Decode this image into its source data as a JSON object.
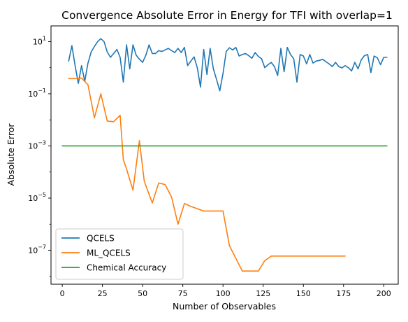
{
  "chart_data": {
    "type": "line",
    "title": "Convergence Absolute Error in Energy for TFI with overlap=1",
    "xlabel": "Number of Observables",
    "ylabel": "Absolute Error",
    "xlim": [
      -7,
      209
    ],
    "ylim": [
      5e-09,
      40
    ],
    "yscale": "log",
    "grid": false,
    "legend_position": "lower-left",
    "x_ticks": [
      0,
      25,
      50,
      75,
      100,
      125,
      150,
      175,
      200
    ],
    "y_ticks": [
      {
        "value": 10,
        "mantissa": "10",
        "exp": "1"
      },
      {
        "value": 0.1,
        "mantissa": "10",
        "exp": "−1"
      },
      {
        "value": 0.001,
        "mantissa": "10",
        "exp": "−3"
      },
      {
        "value": 1e-05,
        "mantissa": "10",
        "exp": "−5"
      },
      {
        "value": 1e-07,
        "mantissa": "10",
        "exp": "−7"
      }
    ],
    "series": [
      {
        "name": "QCELS",
        "color": "#1f77b4",
        "x": [
          4,
          6,
          8,
          10,
          12,
          14,
          16,
          18,
          20,
          22,
          24,
          26,
          28,
          30,
          32,
          34,
          36,
          38,
          40,
          42,
          44,
          46,
          48,
          50,
          52,
          54,
          56,
          58,
          60,
          62,
          64,
          66,
          68,
          70,
          72,
          74,
          76,
          78,
          80,
          82,
          84,
          86,
          88,
          90,
          92,
          94,
          96,
          98,
          100,
          102,
          104,
          106,
          108,
          110,
          112,
          114,
          116,
          118,
          120,
          122,
          124,
          126,
          128,
          130,
          132,
          134,
          136,
          138,
          140,
          142,
          144,
          146,
          148,
          150,
          152,
          154,
          156,
          158,
          160,
          162,
          164,
          166,
          168,
          170,
          172,
          174,
          176,
          178,
          180,
          182,
          184,
          186,
          188,
          190,
          192,
          194,
          196,
          198,
          200,
          202
        ],
        "y": [
          1.8,
          7.0,
          1.2,
          0.25,
          1.2,
          0.3,
          1.5,
          4.0,
          6.5,
          10,
          13,
          10,
          4.0,
          2.5,
          3.5,
          5.0,
          2.5,
          0.28,
          7.5,
          0.9,
          7.5,
          3.0,
          2.1,
          1.6,
          3.0,
          7.5,
          3.5,
          3.5,
          4.5,
          4.2,
          4.8,
          5.5,
          4.5,
          3.8,
          5.5,
          3.8,
          6.0,
          1.2,
          1.8,
          2.6,
          1.0,
          0.18,
          5.0,
          0.55,
          5.5,
          0.9,
          0.35,
          0.13,
          0.6,
          4.2,
          5.8,
          4.8,
          6.0,
          2.8,
          3.2,
          3.5,
          2.9,
          2.3,
          3.8,
          2.7,
          2.2,
          1.0,
          1.3,
          1.6,
          1.1,
          0.5,
          5.5,
          0.7,
          6.0,
          3.2,
          2.2,
          0.28,
          3.2,
          2.8,
          1.4,
          3.2,
          1.5,
          1.8,
          1.9,
          2.1,
          1.7,
          1.4,
          1.1,
          1.6,
          1.1,
          0.98,
          1.2,
          1.0,
          0.75,
          1.6,
          0.9,
          2.0,
          2.9,
          3.2,
          0.65,
          2.8,
          2.4,
          1.3,
          2.5,
          2.5
        ]
      },
      {
        "name": "ML_QCELS",
        "color": "#ff7f0e",
        "x": [
          4,
          8,
          12,
          16,
          20,
          24,
          28,
          32,
          36,
          38,
          40,
          44,
          48,
          51,
          56,
          60,
          64,
          68,
          72,
          76,
          80,
          88,
          96,
          100,
          104,
          112,
          120,
          122,
          126,
          130,
          176
        ],
        "y": [
          0.38,
          0.38,
          0.4,
          0.22,
          0.012,
          0.1,
          0.009,
          0.0085,
          0.015,
          0.0003,
          0.00013,
          2e-05,
          0.0016,
          4.5e-05,
          6.5e-06,
          3.8e-05,
          3.3e-05,
          1.1e-05,
          1e-06,
          6.2e-06,
          4.8e-06,
          3.2e-06,
          3.2e-06,
          3.2e-06,
          1.5e-07,
          1.6e-08,
          1.6e-08,
          1.6e-08,
          4e-08,
          6e-08,
          6e-08
        ]
      },
      {
        "name": "Chemical Accuracy",
        "color": "#2ca02c",
        "x": [
          0,
          202
        ],
        "y": [
          0.001,
          0.001
        ]
      }
    ]
  }
}
